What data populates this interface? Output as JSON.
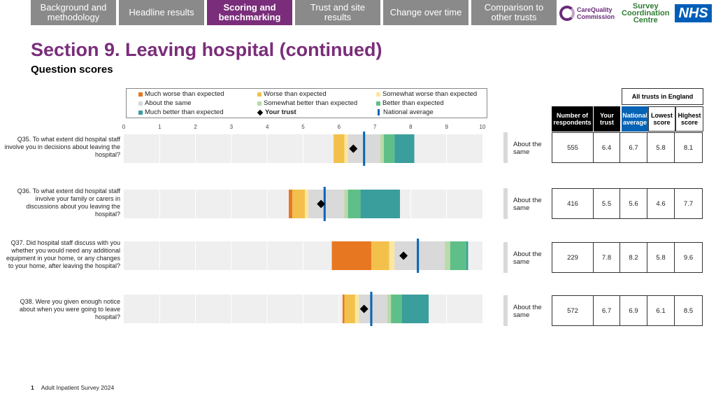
{
  "nav": {
    "tabs": [
      {
        "label": "Background and methodology",
        "active": false
      },
      {
        "label": "Headline results",
        "active": false
      },
      {
        "label": "Scoring and benchmarking",
        "active": true
      },
      {
        "label": "Trust and site results",
        "active": false
      },
      {
        "label": "Change over time",
        "active": false
      },
      {
        "label": "Comparison to other trusts",
        "active": false
      }
    ]
  },
  "logos": {
    "cqc_line1": "CareQuality",
    "cqc_line2": "Commission",
    "scc_line1": "Survey",
    "scc_line2": "Coordination",
    "scc_line3": "Centre",
    "nhs": "NHS"
  },
  "page": {
    "title": "Section 9. Leaving hospital (continued)",
    "subtitle": "Question scores"
  },
  "legend": {
    "much_worse": "Much worse than expected",
    "worse": "Worse than expected",
    "somewhat_worse": "Somewhat worse than expected",
    "about_same": "About the same",
    "somewhat_better": "Somewhat better than expected",
    "better": "Better than expected",
    "much_better": "Much better than expected",
    "your_trust": "Your trust",
    "national_average": "National average"
  },
  "colors": {
    "much_worse": "#e87722",
    "worse": "#f3c14b",
    "somewhat_worse": "#fbe7a1",
    "about_same": "#d9d9d9",
    "somewhat_better": "#b9dba8",
    "better": "#5fbf88",
    "much_better": "#3a9e9c",
    "background": "#efefef",
    "national_average": "#0563b5",
    "title": "#7a2d7a"
  },
  "table": {
    "group_header": "All trusts in England",
    "headers": {
      "respondents": "Number of respondents",
      "your_trust": "Your trust",
      "national": "National average",
      "lowest": "Lowest score",
      "highest": "Highest score"
    }
  },
  "chart_data": {
    "type": "bar",
    "xlim": [
      0,
      10
    ],
    "xticks": [
      "0",
      "1",
      "2",
      "3",
      "4",
      "5",
      "6",
      "7",
      "8",
      "9",
      "10"
    ],
    "questions": [
      {
        "label": "Q35. To what extent did hospital staff involve you in decisions about leaving the hospital?",
        "bands": [
          {
            "band": "worse",
            "from": 5.85,
            "to": 6.15
          },
          {
            "band": "somewhat_worse",
            "from": 6.15,
            "to": 6.25
          },
          {
            "band": "about_same",
            "from": 6.25,
            "to": 7.15
          },
          {
            "band": "somewhat_better",
            "from": 7.15,
            "to": 7.25
          },
          {
            "band": "better",
            "from": 7.25,
            "to": 7.55
          },
          {
            "band": "much_better",
            "from": 7.55,
            "to": 8.1
          }
        ],
        "your_trust": 6.4,
        "national": 6.7,
        "status": "About the same",
        "respondents": "555",
        "trust_score": "6.4",
        "national_text": "6.7",
        "lowest": "5.8",
        "highest": "8.1"
      },
      {
        "label": "Q36. To what extent did hospital staff involve your family or carers in discussions about you leaving the hospital?",
        "bands": [
          {
            "band": "much_worse",
            "from": 4.6,
            "to": 4.7
          },
          {
            "band": "worse",
            "from": 4.7,
            "to": 5.05
          },
          {
            "band": "somewhat_worse",
            "from": 5.05,
            "to": 5.15
          },
          {
            "band": "about_same",
            "from": 5.15,
            "to": 6.15
          },
          {
            "band": "somewhat_better",
            "from": 6.15,
            "to": 6.25
          },
          {
            "band": "better",
            "from": 6.25,
            "to": 6.6
          },
          {
            "band": "much_better",
            "from": 6.6,
            "to": 7.7
          }
        ],
        "your_trust": 5.5,
        "national": 5.6,
        "status": "About the same",
        "respondents": "416",
        "trust_score": "5.5",
        "national_text": "5.6",
        "lowest": "4.6",
        "highest": "7.7"
      },
      {
        "label": "Q37. Did hospital staff discuss with you whether you would need any additional equipment in your home, or any changes to your home, after leaving the hospital?",
        "bands": [
          {
            "band": "much_worse",
            "from": 5.8,
            "to": 6.9
          },
          {
            "band": "worse",
            "from": 6.9,
            "to": 7.4
          },
          {
            "band": "somewhat_worse",
            "from": 7.4,
            "to": 7.55
          },
          {
            "band": "about_same",
            "from": 7.55,
            "to": 8.95
          },
          {
            "band": "somewhat_better",
            "from": 8.95,
            "to": 9.1
          },
          {
            "band": "better",
            "from": 9.1,
            "to": 9.55
          },
          {
            "band": "much_better",
            "from": 9.55,
            "to": 9.6
          }
        ],
        "your_trust": 7.8,
        "national": 8.2,
        "status": "About the same",
        "respondents": "229",
        "trust_score": "7.8",
        "national_text": "8.2",
        "lowest": "5.8",
        "highest": "9.6"
      },
      {
        "label": "Q38. Were you given enough notice about when you were going to leave hospital?",
        "bands": [
          {
            "band": "much_worse",
            "from": 6.1,
            "to": 6.15
          },
          {
            "band": "worse",
            "from": 6.15,
            "to": 6.45
          },
          {
            "band": "somewhat_worse",
            "from": 6.45,
            "to": 6.55
          },
          {
            "band": "about_same",
            "from": 6.55,
            "to": 7.35
          },
          {
            "band": "somewhat_better",
            "from": 7.35,
            "to": 7.45
          },
          {
            "band": "better",
            "from": 7.45,
            "to": 7.75
          },
          {
            "band": "much_better",
            "from": 7.75,
            "to": 8.5
          }
        ],
        "your_trust": 6.7,
        "national": 6.9,
        "status": "About the same",
        "respondents": "572",
        "trust_score": "6.7",
        "national_text": "6.9",
        "lowest": "6.1",
        "highest": "8.5"
      }
    ]
  },
  "footer": {
    "page_number": "1",
    "text": "Adult Inpatient Survey 2024"
  }
}
